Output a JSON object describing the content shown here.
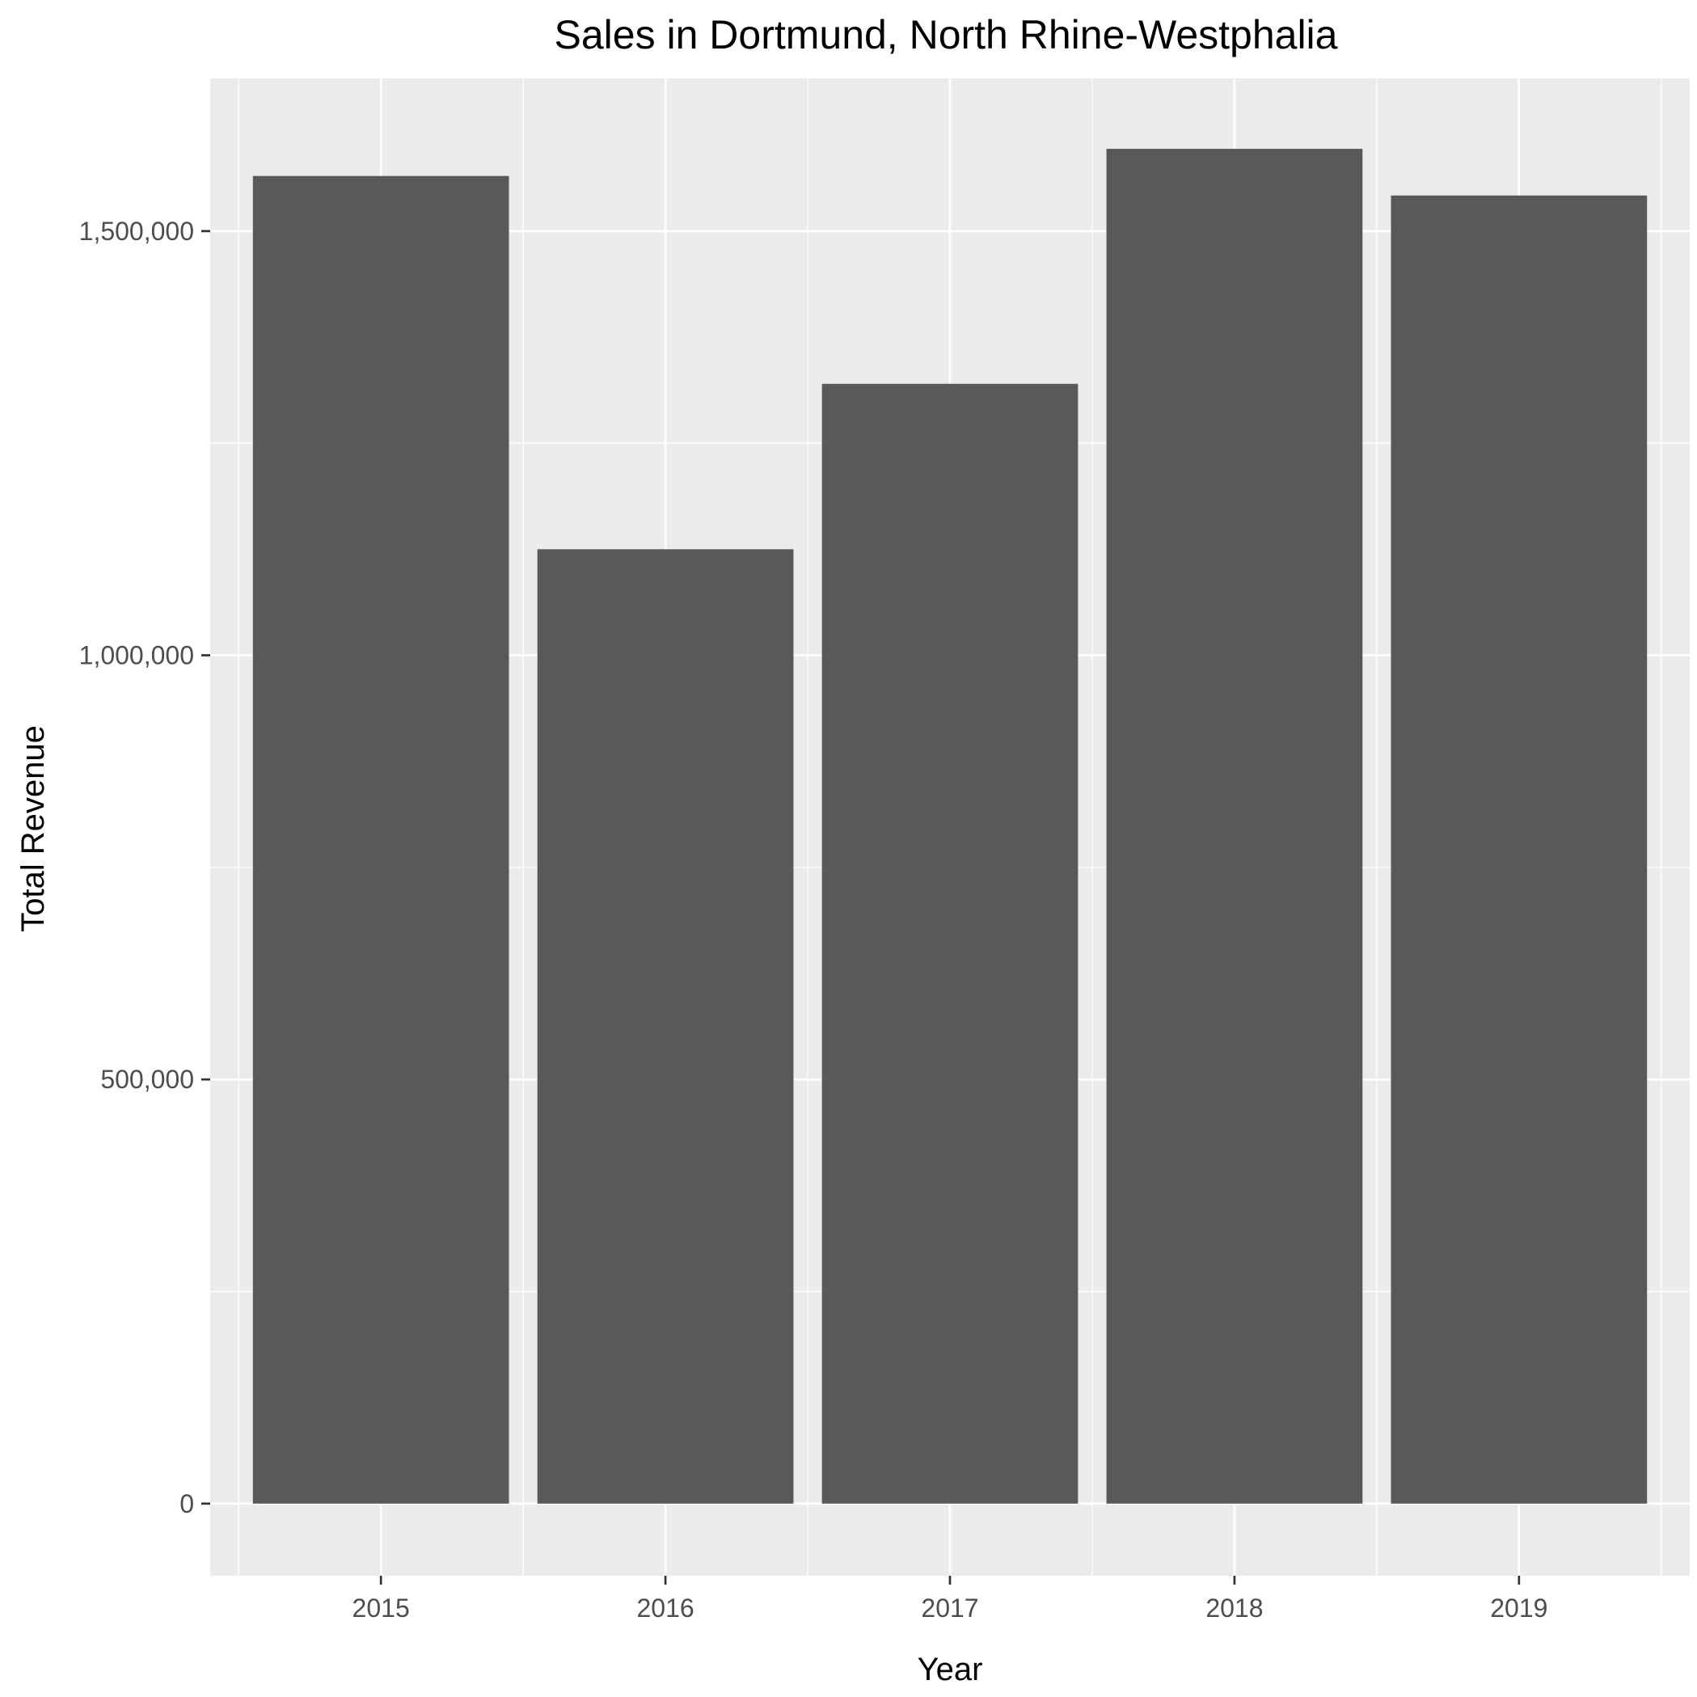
{
  "chart_data": {
    "type": "bar",
    "title": "Sales in Dortmund, North Rhine-Westphalia",
    "xlabel": "Year",
    "ylabel": "Total Revenue",
    "categories": [
      "2015",
      "2016",
      "2017",
      "2018",
      "2019"
    ],
    "values": [
      1565000,
      1125000,
      1320000,
      1597000,
      1542000
    ],
    "ylim": [
      -85000,
      1680000
    ],
    "yticks": [
      0,
      500000,
      1000000,
      1500000
    ],
    "ytick_labels": [
      "0",
      "500,000",
      "1,000,000",
      "1,500,000"
    ],
    "grid": true,
    "legend": "none",
    "colors": {
      "panel": "#ebebeb",
      "grid": "#ffffff",
      "bar": "#595959",
      "tick": "#333333",
      "tick_label": "#4d4d4d"
    }
  }
}
